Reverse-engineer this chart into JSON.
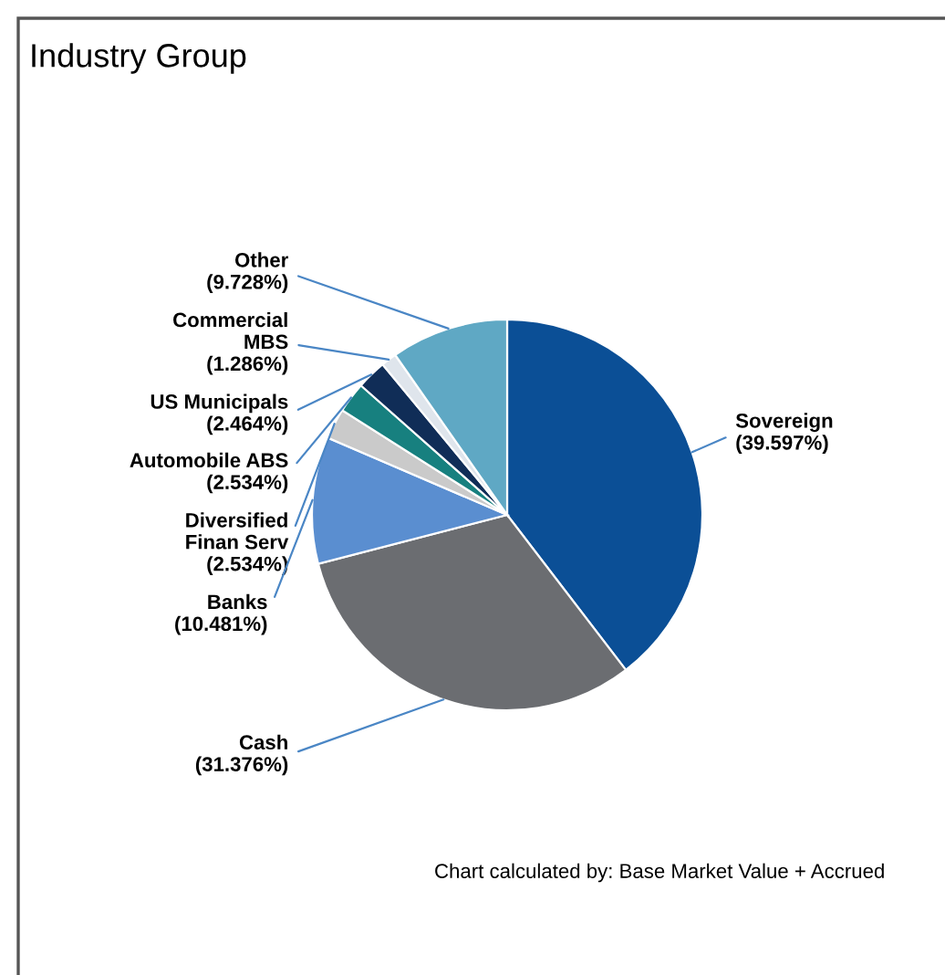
{
  "chart_data": {
    "type": "pie",
    "title": "Industry Group",
    "categories": [
      "Sovereign",
      "Cash",
      "Banks",
      "Diversified\nFinan Serv",
      "Automobile ABS",
      "US Municipals",
      "Commercial\nMBS",
      "Other"
    ],
    "values": [
      39.597,
      31.376,
      10.481,
      2.534,
      2.534,
      2.464,
      1.286,
      9.728
    ],
    "value_labels": [
      "(39.597%)",
      "(31.376%)",
      "(10.481%)",
      "(2.534%)",
      "(2.534%)",
      "(2.464%)",
      "(1.286%)",
      "(9.728%)"
    ],
    "colors": [
      "#0b4f96",
      "#6b6d71",
      "#5a8ed0",
      "#cacaca",
      "#17807f",
      "#102d57",
      "#dfe5ec",
      "#5fa8c4"
    ],
    "annotations": [
      "Chart calculated by: Base Market Value + Accrued"
    ]
  }
}
